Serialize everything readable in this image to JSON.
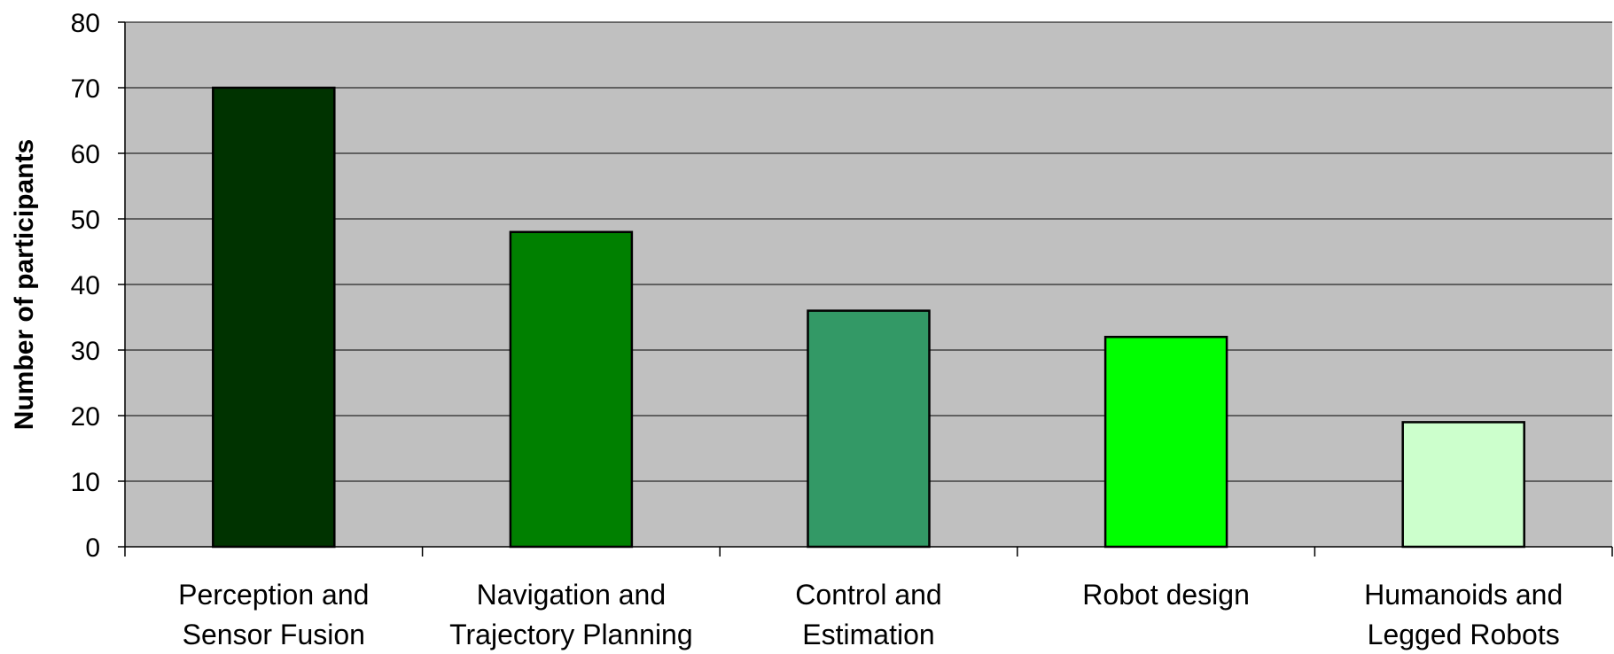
{
  "chart_data": {
    "type": "bar",
    "title": "",
    "xlabel": "",
    "ylabel": "Number of participants",
    "ylim": [
      0,
      80
    ],
    "yticks": [
      0,
      10,
      20,
      30,
      40,
      50,
      60,
      70,
      80
    ],
    "grid": true,
    "legend": "none",
    "plot_background": "#C0C0C0",
    "categories": [
      [
        "Perception and",
        "Sensor Fusion"
      ],
      [
        "Navigation and",
        "Trajectory Planning"
      ],
      [
        "Control and",
        "Estimation"
      ],
      [
        "Robot design"
      ],
      [
        "Humanoids and",
        "Legged Robots"
      ]
    ],
    "values": [
      70,
      48,
      36,
      32,
      19
    ],
    "bar_colors": [
      "#003300",
      "#008000",
      "#339966",
      "#00FF00",
      "#CCFFCC"
    ]
  }
}
